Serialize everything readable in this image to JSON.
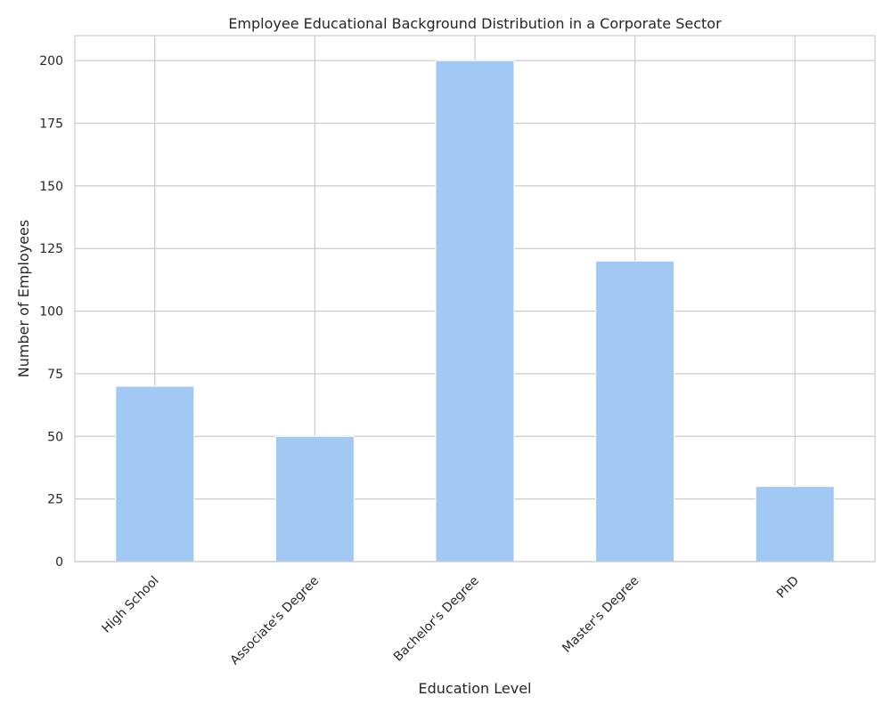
{
  "chart_data": {
    "type": "bar",
    "title": "Employee Educational Background Distribution in a Corporate Sector",
    "xlabel": "Education Level",
    "ylabel": "Number of Employees",
    "categories": [
      "High School",
      "Associate's Degree",
      "Bachelor's Degree",
      "Master's Degree",
      "PhD"
    ],
    "values": [
      70,
      50,
      200,
      120,
      30
    ],
    "ylim": [
      0,
      210
    ],
    "yticks": [
      0,
      25,
      50,
      75,
      100,
      125,
      150,
      175,
      200
    ],
    "grid": true,
    "bar_color": "#a1c9f4",
    "grid_color": "#cccccc",
    "x_tick_rotation": "45 degrees"
  }
}
